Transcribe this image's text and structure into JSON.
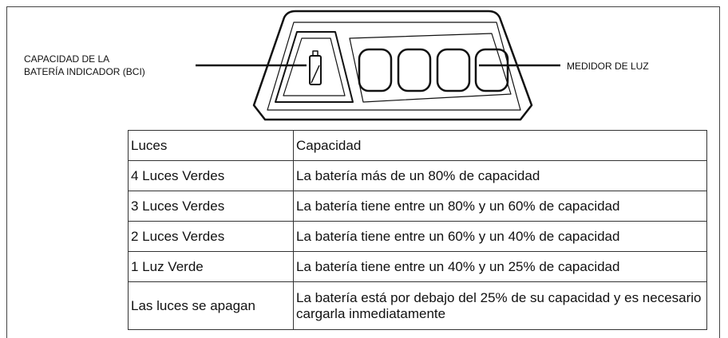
{
  "labels": {
    "bci": [
      "CAPACIDAD DE LA",
      "BATERÍA INDICADOR (BCI)"
    ],
    "meter": "MEDIDOR DE LUZ"
  },
  "table": {
    "header": [
      "Luces",
      "Capacidad"
    ],
    "rows": [
      [
        "4 Luces Verdes",
        "La batería más de un 80% de capacidad"
      ],
      [
        "3 Luces Verdes",
        "La batería tiene entre un 80% y un 60% de capacidad"
      ],
      [
        "2 Luces Verdes",
        "La batería tiene entre un 60% y un 40% de capacidad"
      ],
      [
        "1 Luz Verde",
        "La batería tiene entre un 40% y un 25% de capacidad"
      ],
      [
        "Las luces se apagan",
        "La batería está por debajo del 25% de su capacidad y es necesario cargarla inmediatamente"
      ]
    ]
  }
}
